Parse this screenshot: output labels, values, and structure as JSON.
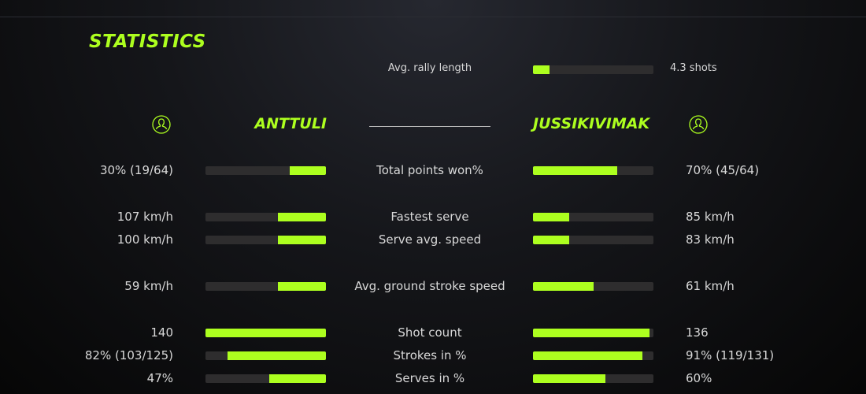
{
  "title": "STATISTICS",
  "accent_color": "#adff1f",
  "rally": {
    "label": "Avg. rally length",
    "value": "4.3 shots",
    "fraction": 0.14
  },
  "players": {
    "left": {
      "name": "ANTTULI",
      "icon": "user-circle-icon"
    },
    "right": {
      "name": "JUSSIKIVIMAK",
      "icon": "user-circle-icon"
    }
  },
  "stats": [
    {
      "label": "Total points won%",
      "left": "30% (19/64)",
      "right": "70% (45/64)",
      "left_fraction": 0.3,
      "right_fraction": 0.7
    },
    {
      "label": "Fastest serve",
      "left": "107 km/h",
      "right": "85 km/h",
      "left_fraction": 0.4,
      "right_fraction": 0.3
    },
    {
      "label": "Serve avg. speed",
      "left": "100 km/h",
      "right": "83 km/h",
      "left_fraction": 0.4,
      "right_fraction": 0.3
    },
    {
      "label": "Avg. ground stroke speed",
      "left": "59 km/h",
      "right": "61 km/h",
      "left_fraction": 0.4,
      "right_fraction": 0.5
    },
    {
      "label": "Shot count",
      "left": "140",
      "right": "136",
      "left_fraction": 1.0,
      "right_fraction": 0.97
    },
    {
      "label": "Strokes in %",
      "left": "82% (103/125)",
      "right": "91% (119/131)",
      "left_fraction": 0.82,
      "right_fraction": 0.91
    },
    {
      "label": "Serves in %",
      "left": "47%",
      "right": "60%",
      "left_fraction": 0.47,
      "right_fraction": 0.6
    }
  ]
}
